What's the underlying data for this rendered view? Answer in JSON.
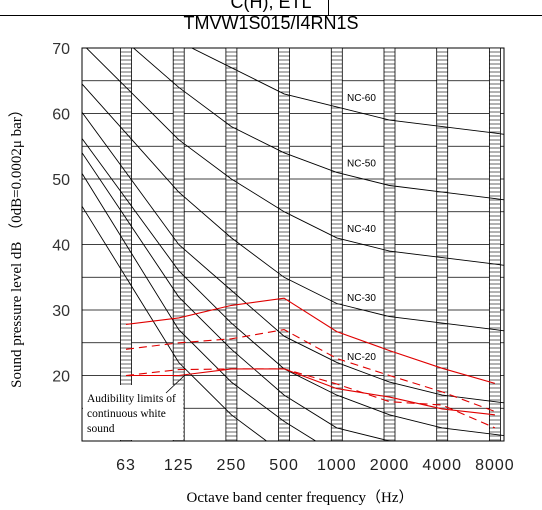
{
  "header": {
    "clipped_text": "C(H), ETL"
  },
  "chart_data": {
    "type": "line",
    "title": "TMVW1S015/I4RN1S",
    "xlabel": "Octave band center frequency（Hz）",
    "ylabel": "Sound pressure level dB （0dB=0.0002μ bar）",
    "x_tick_labels": [
      "63",
      "125",
      "250",
      "500",
      "1000",
      "2000",
      "4000",
      "8000"
    ],
    "y_ticks": [
      20,
      30,
      40,
      50,
      60,
      70
    ],
    "ylim": [
      10,
      70
    ],
    "grid": true,
    "nc_curves": [
      {
        "name": "NC-60",
        "values": [
          77,
          71,
          67,
          63,
          61,
          59,
          58,
          57
        ]
      },
      {
        "name": "NC-50",
        "values": [
          71,
          64,
          58,
          54,
          51,
          49,
          48,
          47
        ]
      },
      {
        "name": "NC-40",
        "values": [
          64,
          56,
          50,
          45,
          41,
          39,
          38,
          37
        ]
      },
      {
        "name": "NC-30",
        "values": [
          57,
          48,
          41,
          35,
          31,
          29,
          28,
          27
        ]
      },
      {
        "name": "NC-20",
        "values": [
          51,
          40,
          33,
          26,
          22,
          19,
          17,
          16
        ]
      },
      {
        "name": "",
        "values": [
          47,
          36,
          28,
          21,
          17,
          14,
          12,
          11
        ]
      },
      {
        "name": "",
        "values": [
          44,
          32,
          24,
          17,
          12,
          10,
          8,
          7
        ]
      },
      {
        "name": "",
        "values": [
          40,
          27,
          19,
          13,
          8,
          6,
          5,
          4
        ]
      },
      {
        "name": "",
        "values": [
          35,
          22,
          14,
          8,
          4,
          2,
          1,
          0
        ]
      }
    ],
    "nc_label_values": {
      "NC-60": 62.5,
      "NC-50": 52.5,
      "NC-40": 42.5,
      "NC-30": 32.0,
      "NC-20": 23.0
    },
    "series": [
      {
        "style": "solid",
        "values": [
          27.8,
          28.8,
          30.7,
          31.8,
          26.7,
          23.8,
          21.1,
          18.8
        ]
      },
      {
        "style": "dashed",
        "values": [
          24.0,
          25.0,
          25.6,
          27.0,
          22.6,
          20.0,
          17.5,
          14.5
        ]
      },
      {
        "style": "solid",
        "values": [
          20.0,
          20.0,
          21.0,
          21.0,
          18.0,
          16.7,
          14.9,
          14.0
        ]
      },
      {
        "style": "dashed",
        "values": [
          20.0,
          20.9,
          21.0,
          21.0,
          18.7,
          16.0,
          15.5,
          12.0
        ]
      }
    ],
    "annotation": {
      "lines": [
        "Audibility limits of",
        "continuous white",
        "sound"
      ]
    },
    "colors": {
      "measured": "#e00000",
      "grid": "#000000",
      "nc": "#000000"
    }
  }
}
